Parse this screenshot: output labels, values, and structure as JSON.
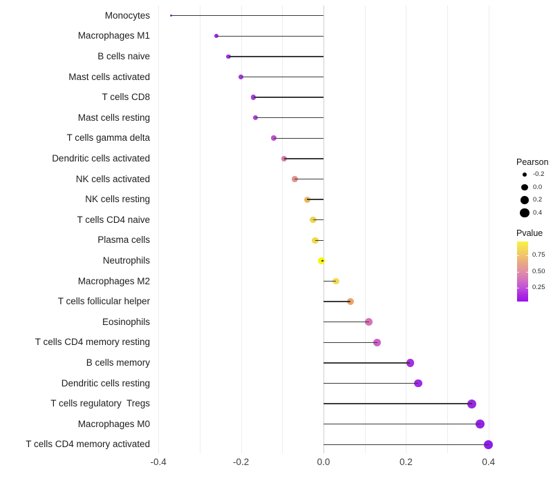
{
  "chart_data": {
    "type": "scatter",
    "variant": "lollipop",
    "orientation": "horizontal",
    "title": "",
    "xlabel": "",
    "ylabel": "",
    "xlim": [
      -0.42,
      0.44
    ],
    "grid": "on",
    "x_ticks": [
      {
        "label": "-0.4",
        "value": -0.4
      },
      {
        "label": "-0.2",
        "value": -0.2
      },
      {
        "label": "0.0",
        "value": 0.0
      },
      {
        "label": "0.2",
        "value": 0.2
      },
      {
        "label": "0.4",
        "value": 0.4
      }
    ],
    "x_gridlines": [
      -0.4,
      -0.3,
      -0.2,
      -0.1,
      0.1,
      0.2,
      0.3,
      0.4
    ],
    "baseline_value": 0,
    "points": [
      {
        "label": "Monocytes",
        "pearson": -0.37,
        "color": "#8c2be0"
      },
      {
        "label": "Macrophages M1",
        "pearson": -0.26,
        "color": "#9c2ae2"
      },
      {
        "label": "B cells naive",
        "pearson": -0.23,
        "color": "#9e30e0"
      },
      {
        "label": "Mast cells activated",
        "pearson": -0.2,
        "color": "#a338de"
      },
      {
        "label": "T cells CD8",
        "pearson": -0.17,
        "color": "#a63cdc"
      },
      {
        "label": "Mast cells resting",
        "pearson": -0.165,
        "color": "#ad48d6"
      },
      {
        "label": "T cells gamma delta",
        "pearson": -0.12,
        "color": "#bc52cc"
      },
      {
        "label": "Dendritic cells activated",
        "pearson": -0.095,
        "color": "#d878a6"
      },
      {
        "label": "NK cells activated",
        "pearson": -0.07,
        "color": "#e2928c"
      },
      {
        "label": "NK cells resting",
        "pearson": -0.04,
        "color": "#eaba5e"
      },
      {
        "label": "T cells CD4 naive",
        "pearson": -0.025,
        "color": "#edd44e"
      },
      {
        "label": "Plasma cells",
        "pearson": -0.02,
        "color": "#eeda48"
      },
      {
        "label": "Neutrophils",
        "pearson": -0.005,
        "color": "#f6f50e"
      },
      {
        "label": "Macrophages M2",
        "pearson": 0.03,
        "color": "#f0dc55"
      },
      {
        "label": "T cells follicular helper",
        "pearson": 0.065,
        "color": "#eaa56c"
      },
      {
        "label": "Eosinophils",
        "pearson": 0.11,
        "color": "#d673b5"
      },
      {
        "label": "T cells CD4 memory resting",
        "pearson": 0.13,
        "color": "#cd5fc8"
      },
      {
        "label": "B cells memory",
        "pearson": 0.21,
        "color": "#a52ee3"
      },
      {
        "label": "Dendritic cells resting",
        "pearson": 0.23,
        "color": "#a029e5"
      },
      {
        "label": "T cells regulatory  Tregs",
        "pearson": 0.36,
        "color": "#9a28e5"
      },
      {
        "label": "Macrophages M0",
        "pearson": 0.38,
        "color": "#9322e7"
      },
      {
        "label": "T cells CD4 memory activated",
        "pearson": 0.4,
        "color": "#8d1dea"
      }
    ],
    "legend_size": {
      "title": "Pearson",
      "dot_color": "#000000",
      "entries": [
        {
          "label": "-0.2",
          "value": -0.2
        },
        {
          "label": "0.0",
          "value": 0.0
        },
        {
          "label": "0.2",
          "value": 0.2
        },
        {
          "label": "0.4",
          "value": 0.4
        }
      ]
    },
    "legend_color": {
      "title": "Pvalue",
      "gradient_high_color": "#f9f245",
      "gradient_low_color": "#9a14e8",
      "tick_labels": [
        {
          "label": "0.75",
          "t": 0.23
        },
        {
          "label": "0.50",
          "t": 0.5
        },
        {
          "label": "0.25",
          "t": 0.77
        }
      ]
    }
  }
}
